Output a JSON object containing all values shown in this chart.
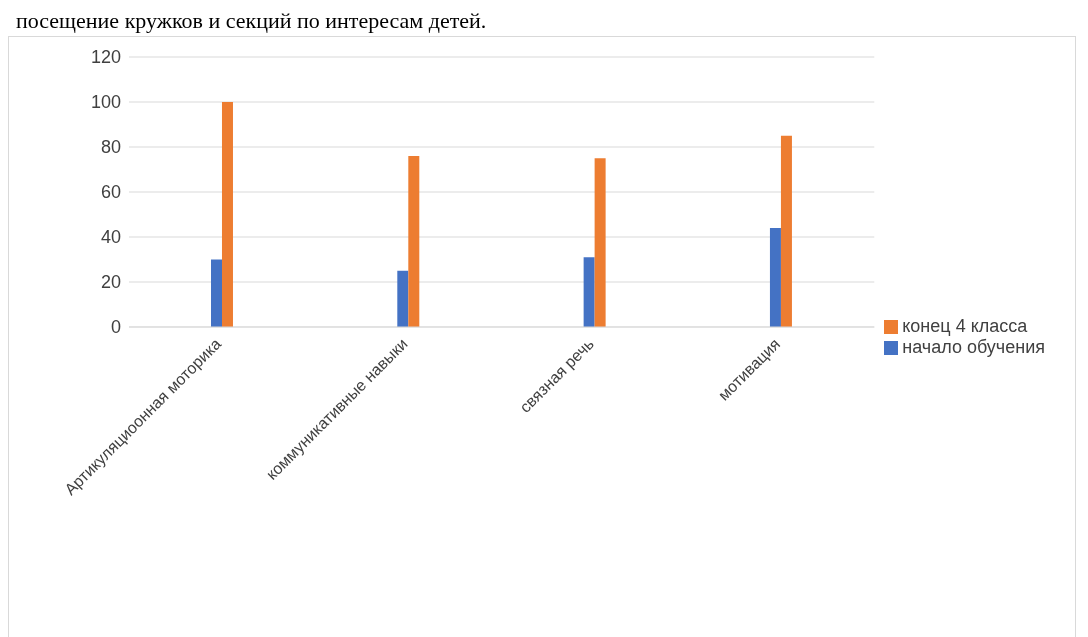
{
  "chart_data": {
    "type": "bar",
    "annotations": [
      "посещение кружков и секций по интересам детей."
    ],
    "categories": [
      "Артикуляциоонная моторика",
      "коммуникативные навыки",
      "связная речь",
      "мотивация"
    ],
    "series": [
      {
        "name": "начало обучения",
        "color": "#4472c4",
        "values": [
          30,
          25,
          31,
          44
        ]
      },
      {
        "name": "конец 4 класса",
        "color": "#ed7d31",
        "values": [
          100,
          76,
          75,
          85
        ]
      }
    ],
    "ylim": [
      0,
      120
    ],
    "yticks": [
      0,
      20,
      40,
      60,
      80,
      100,
      120
    ],
    "grid": "y",
    "legend": "right"
  }
}
